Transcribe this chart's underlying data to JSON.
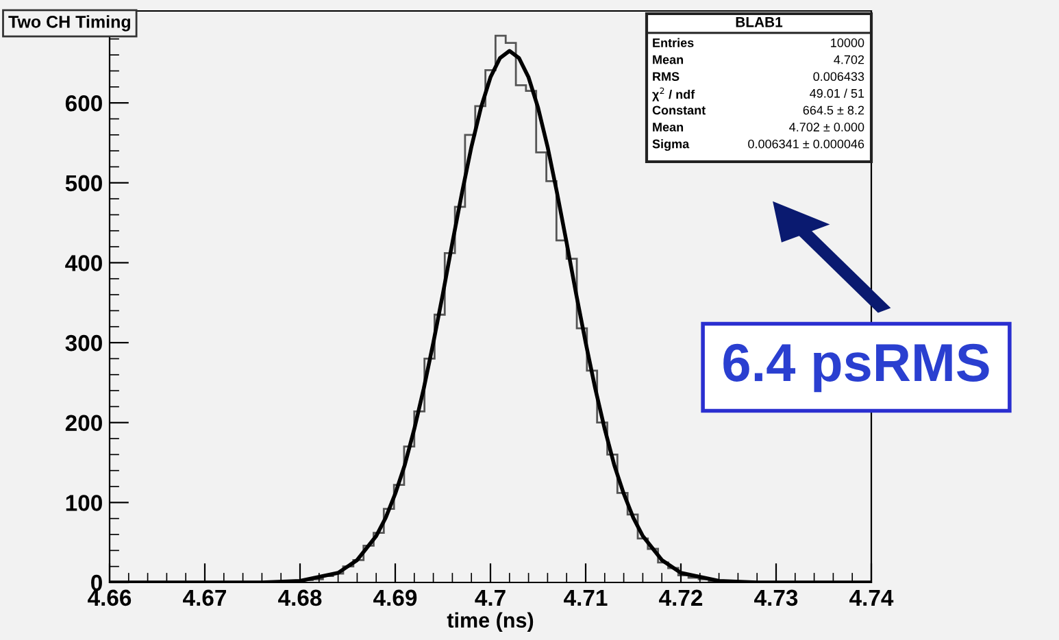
{
  "chart_data": {
    "type": "histogram",
    "title": "Two CH Timing",
    "xlabel": "time (ns)",
    "bins": [
      4.66,
      4.66107,
      4.66213,
      4.6632,
      4.66427,
      4.66533,
      4.6664,
      4.66747,
      4.66853,
      4.6696,
      4.67067,
      4.67173,
      4.6728,
      4.67387,
      4.67493,
      4.676,
      4.67707,
      4.67813,
      4.6792,
      4.68027,
      4.68133,
      4.6824,
      4.68347,
      4.68453,
      4.6856,
      4.68667,
      4.68773,
      4.6888,
      4.68987,
      4.69093,
      4.692,
      4.69307,
      4.69413,
      4.6952,
      4.69627,
      4.69733,
      4.6984,
      4.69947,
      4.70053,
      4.7016,
      4.70267,
      4.70373,
      4.7048,
      4.70587,
      4.70693,
      4.708,
      4.70907,
      4.71013,
      4.7112,
      4.71227,
      4.71333,
      4.7144,
      4.71547,
      4.71653,
      4.7176,
      4.71867,
      4.71973,
      4.7208,
      4.72187,
      4.72293,
      4.724,
      4.72507,
      4.72613,
      4.7272,
      4.72827,
      4.72933,
      4.7304,
      4.73147,
      4.73253,
      4.7336,
      4.73467,
      4.73573,
      4.7368,
      4.73787,
      4.73893,
      4.74
    ],
    "series": [
      {
        "color": "#555555",
        "values": [
          0,
          0,
          0,
          0,
          0,
          0,
          0,
          0,
          0,
          0,
          0,
          0,
          0,
          0,
          0,
          0,
          0,
          0,
          1,
          3,
          4,
          8,
          11,
          20,
          28,
          46,
          62,
          92,
          122,
          170,
          214,
          280,
          335,
          412,
          470,
          560,
          596,
          641,
          684,
          675,
          622,
          615,
          538,
          502,
          428,
          405,
          318,
          265,
          200,
          160,
          112,
          85,
          55,
          42,
          25,
          18,
          9,
          6,
          4,
          2,
          1,
          0,
          0,
          0,
          0,
          0,
          0,
          0,
          0,
          0,
          0,
          0,
          0,
          0,
          0
        ]
      },
      {
        "type": "line",
        "color": "#000000",
        "x": [
          4.66,
          4.67,
          4.676,
          4.68,
          4.684,
          4.686,
          4.688,
          4.689,
          4.69,
          4.691,
          4.692,
          4.693,
          4.694,
          4.695,
          4.696,
          4.697,
          4.698,
          4.699,
          4.7,
          4.701,
          4.702,
          4.703,
          4.704,
          4.705,
          4.706,
          4.707,
          4.708,
          4.709,
          4.71,
          4.711,
          4.712,
          4.713,
          4.714,
          4.715,
          4.716,
          4.718,
          4.72,
          4.724,
          4.728,
          4.734,
          4.74
        ],
        "values": [
          0,
          0,
          0,
          2,
          12,
          28,
          58,
          81,
          111,
          147,
          192,
          243,
          300,
          361,
          425,
          487,
          545,
          594,
          632,
          656,
          665,
          656,
          632,
          594,
          545,
          487,
          425,
          361,
          300,
          243,
          192,
          147,
          111,
          81,
          58,
          28,
          12,
          2,
          0,
          0,
          0
        ]
      }
    ],
    "xlim": [
      4.66,
      4.74
    ],
    "xticks": [
      4.66,
      4.67,
      4.68,
      4.69,
      4.7,
      4.71,
      4.72,
      4.73,
      4.74
    ],
    "ylim": [
      0,
      715
    ],
    "yticks": [
      0,
      100,
      200,
      300,
      400,
      500,
      600
    ],
    "grid": false,
    "annotations": [
      "BLAB1",
      "Entries",
      "10000",
      "Mean",
      "4.702",
      "RMS",
      "0.006433",
      "χ$^{2}$ / ndf",
      "49.01 / 51",
      "Constant",
      "664.5 ± 8.2",
      "Mean",
      "4.702 ± 0.000",
      "Sigma",
      "0.006341 ± 0.000046",
      "6.4 psRMS"
    ]
  }
}
